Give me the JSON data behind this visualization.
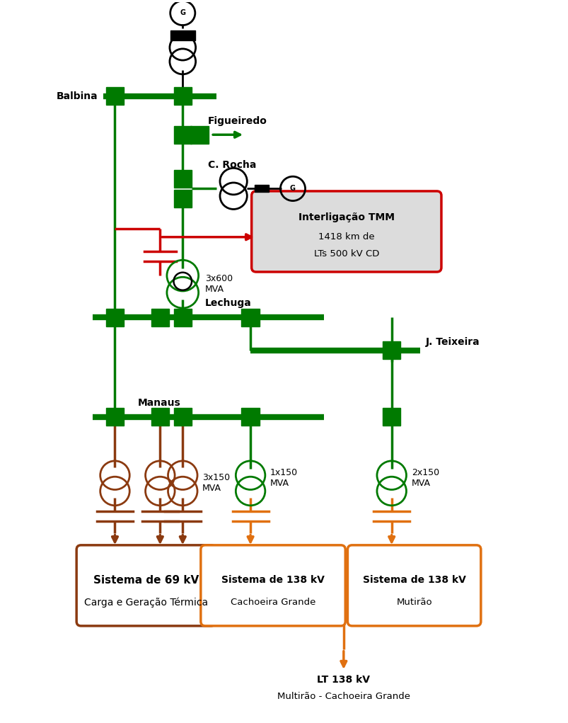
{
  "bg_color": "#ffffff",
  "green": "#007A00",
  "brown": "#8B3A10",
  "orange": "#E07010",
  "red": "#CC0000",
  "black": "#000000",
  "fig_width": 8.04,
  "fig_height": 10.21,
  "labels": {
    "balbina": "Balbina",
    "figueiredo": "Figueiredo",
    "crocha": "C. Rocha",
    "interligacao_title": "Interligação TMM",
    "interligacao_sub1": "1418 km de",
    "interligacao_sub2": "LTs 500 kV CD",
    "3x600": "3x600\nMVA",
    "lechuga": "Lechuga",
    "j_teixeira": "J. Teixeira",
    "manaus": "Manaus",
    "3x150": "3x150\nMVA",
    "1x150": "1x150\nMVA",
    "2x150": "2x150\nMVA",
    "sistema69_title": "Sistema de 69 kV",
    "sistema69_sub": "Carga e Geração Térmica",
    "sistema138_cg_title": "Sistema de 138 kV",
    "sistema138_cg_sub": "Cachoeira Grande",
    "sistema138_m_title": "Sistema de 138 kV",
    "sistema138_m_sub": "Mutirão",
    "lt138": "LT 138 kV",
    "lt138_sub": "Multirão - Cachoeira Grande"
  }
}
